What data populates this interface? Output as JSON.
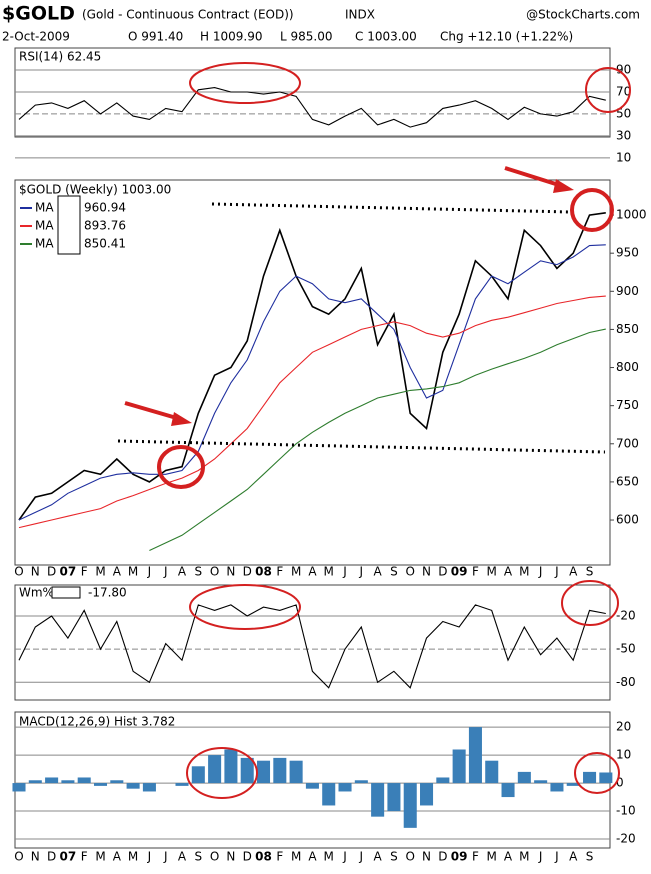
{
  "header": {
    "symbol": "$GOLD",
    "name": "(Gold - Continuous Contract (EOD))",
    "exchange": "INDX",
    "source": "@StockCharts.com",
    "date": "2-Oct-2009",
    "quote": [
      "O 991.40",
      "H 1009.90",
      "L 985.00",
      "C 1003.00",
      "Chg +12.10 (+1.22%)"
    ]
  },
  "chart_data": [
    {
      "type": "line",
      "title": "RSI(14) 62.45",
      "ylim": [
        29,
        110
      ],
      "yticks": [
        90,
        70,
        50,
        30,
        10
      ],
      "grid": true,
      "series": [
        {
          "color": "#000000",
          "values": [
            45,
            58,
            60,
            55,
            62,
            50,
            60,
            48,
            45,
            55,
            52,
            72,
            74,
            70,
            70,
            68,
            70,
            66,
            45,
            40,
            48,
            55,
            40,
            45,
            38,
            42,
            55,
            58,
            62,
            55,
            45,
            56,
            50,
            48,
            52,
            66,
            62.45
          ]
        }
      ]
    },
    {
      "type": "line",
      "title": "$GOLD (Weekly) 1003.00",
      "ylim": [
        541,
        1046
      ],
      "yticks": [
        600,
        650,
        700,
        750,
        800,
        850,
        900,
        950,
        1000
      ],
      "grid": false,
      "categories": [
        "O",
        "N",
        "D",
        "07",
        "F",
        "M",
        "A",
        "M",
        "J",
        "J",
        "A",
        "S",
        "O",
        "N",
        "D",
        "08",
        "F",
        "M",
        "A",
        "M",
        "J",
        "J",
        "A",
        "S",
        "O",
        "N",
        "D",
        "09",
        "F",
        "M",
        "A",
        "M",
        "J",
        "J",
        "A",
        "S",
        null
      ],
      "series": [
        {
          "color": "#000000",
          "values": [
            600,
            630,
            635,
            650,
            665,
            660,
            680,
            660,
            650,
            665,
            670,
            740,
            790,
            800,
            835,
            920,
            980,
            920,
            880,
            870,
            890,
            930,
            830,
            870,
            740,
            720,
            820,
            870,
            940,
            920,
            890,
            980,
            960,
            930,
            950,
            1000,
            1003
          ]
        },
        {
          "name": "MA",
          "last": "960.94",
          "color": "#1f2f9f",
          "values": [
            600,
            610,
            620,
            635,
            645,
            655,
            660,
            662,
            660,
            660,
            665,
            690,
            740,
            780,
            810,
            860,
            900,
            920,
            910,
            890,
            885,
            890,
            870,
            850,
            800,
            760,
            770,
            830,
            890,
            920,
            910,
            925,
            940,
            935,
            945,
            960,
            960.94
          ]
        },
        {
          "name": "MA",
          "last": "893.76",
          "color": "#e8262a",
          "values": [
            590,
            595,
            600,
            605,
            610,
            615,
            625,
            632,
            640,
            648,
            655,
            665,
            680,
            700,
            720,
            750,
            780,
            800,
            820,
            830,
            840,
            850,
            855,
            860,
            855,
            845,
            840,
            845,
            855,
            862,
            866,
            872,
            878,
            884,
            888,
            892,
            893.76
          ]
        },
        {
          "name": "MA",
          "last": "850.41",
          "color": "#2e7d2e",
          "values": [
            null,
            null,
            null,
            null,
            null,
            null,
            null,
            null,
            560,
            570,
            580,
            595,
            610,
            625,
            640,
            660,
            680,
            700,
            715,
            728,
            740,
            750,
            760,
            765,
            770,
            772,
            775,
            780,
            790,
            798,
            805,
            812,
            820,
            830,
            838,
            846,
            850.41
          ]
        }
      ]
    },
    {
      "type": "line",
      "title": "Wm%R",
      "last": "-17.80",
      "ylim": [
        -96,
        8
      ],
      "yticks": [
        -20,
        -50,
        -80
      ],
      "grid": true,
      "series": [
        {
          "color": "#000000",
          "values": [
            -60,
            -30,
            -20,
            -40,
            -15,
            -50,
            -25,
            -70,
            -80,
            -45,
            -60,
            -10,
            -15,
            -10,
            -20,
            -12,
            -15,
            -10,
            -70,
            -85,
            -50,
            -30,
            -80,
            -70,
            -85,
            -40,
            -25,
            -30,
            -10,
            -15,
            -60,
            -30,
            -55,
            -40,
            -60,
            -15,
            -17.8
          ]
        }
      ]
    },
    {
      "type": "bar",
      "title": "MACD(12,26,9) Hist 3.782",
      "ylim": [
        -23.2,
        25.4
      ],
      "yticks": [
        20,
        10,
        0,
        -10,
        -20
      ],
      "grid": true,
      "color": "#3a7fb8",
      "values": [
        -3,
        1,
        2,
        1,
        2,
        -1,
        1,
        -2,
        -3,
        0,
        -1,
        6,
        10,
        12,
        9,
        8,
        9,
        8,
        -2,
        -8,
        -3,
        1,
        -12,
        -10,
        -16,
        -8,
        2,
        12,
        20,
        8,
        -5,
        4,
        1,
        -3,
        -1,
        4,
        3.782
      ]
    }
  ]
}
